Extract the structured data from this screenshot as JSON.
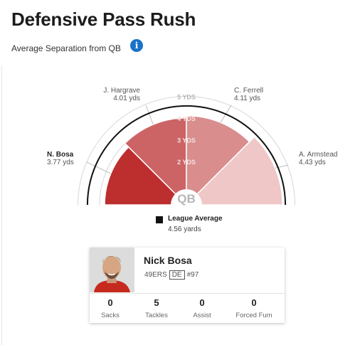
{
  "header": {
    "title": "Defensive Pass Rush",
    "subtitle": "Average Separation from QB",
    "info_glyph": "i"
  },
  "chart": {
    "center_label": "QB",
    "ring_labels": [
      "2 YDS",
      "3 YDS",
      "4 YDS",
      "5 YDS"
    ],
    "players": [
      {
        "name": "N. Bosa",
        "value_text": "3.77 yds",
        "value": 3.77,
        "color": "#bd2e2e"
      },
      {
        "name": "J. Hargrave",
        "value_text": "4.01 yds",
        "value": 4.01,
        "color": "#cc6466"
      },
      {
        "name": "C. Ferrell",
        "value_text": "4.11 yds",
        "value": 4.11,
        "color": "#d98d8d"
      },
      {
        "name": "A. Armstead",
        "value_text": "4.43 yds",
        "value": 4.43,
        "color": "#efc7c7"
      }
    ],
    "league_average": {
      "label": "League Average",
      "value_text": "4.56 yards",
      "value": 4.56
    }
  },
  "player_card": {
    "name": "Nick Bosa",
    "team": "49ERS",
    "position": "DE",
    "number": "#97",
    "stats": [
      {
        "value": "0",
        "label": "Sacks"
      },
      {
        "value": "5",
        "label": "Tackles"
      },
      {
        "value": "0",
        "label": "Assist"
      },
      {
        "value": "0",
        "label": "Forced Fum"
      }
    ]
  },
  "colors": {
    "info_blue": "#1a73c9",
    "ring_gray": "#d6d6d6",
    "avg_line": "#111111",
    "jersey_red": "#c62a1f"
  },
  "icons": [
    "info-icon",
    "legend-square-icon"
  ]
}
